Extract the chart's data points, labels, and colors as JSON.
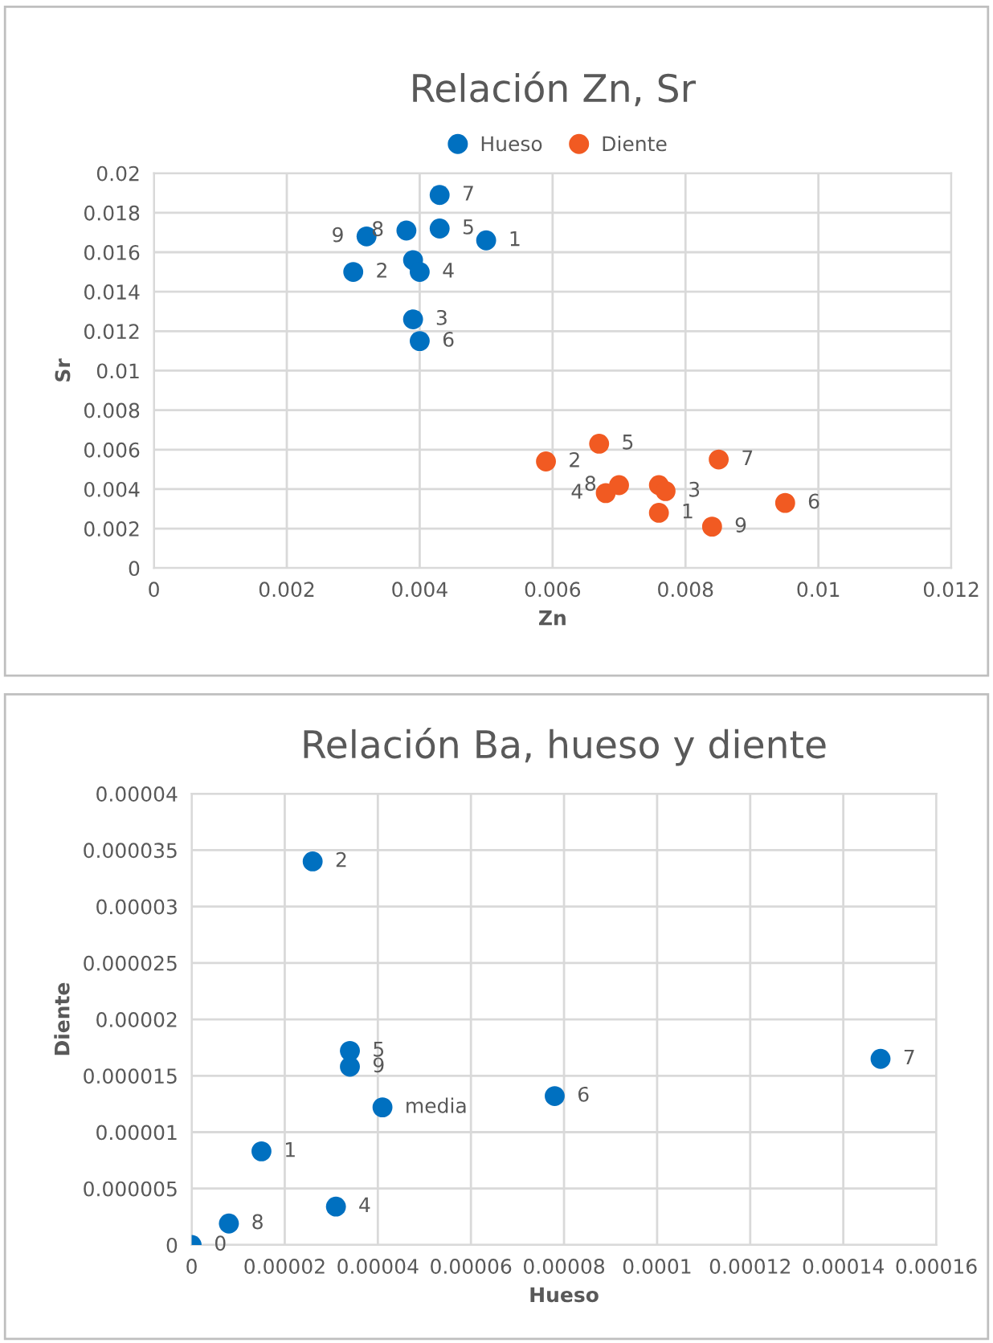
{
  "chart_data": [
    {
      "type": "scatter",
      "title": "Relación Zn, Sr",
      "xlabel": "Zn",
      "ylabel": "Sr",
      "legend": "top",
      "grid": true,
      "marker": "circle",
      "xlim": [
        0,
        0.012
      ],
      "xticks": [
        0,
        0.002,
        0.004,
        0.006,
        0.008,
        0.01,
        0.012
      ],
      "ylim": [
        0,
        0.02
      ],
      "yticks": [
        0,
        0.002,
        0.004,
        0.006,
        0.008,
        0.01,
        0.012,
        0.014,
        0.016,
        0.018,
        0.02
      ],
      "series": [
        {
          "name": "Hueso",
          "color": "#0070c0",
          "x": [
            0.0043,
            0.0038,
            0.0043,
            0.005,
            0.0032,
            0.003,
            0.0039,
            0.004,
            0.0039,
            0.004
          ],
          "values": [
            0.0189,
            0.0171,
            0.0172,
            0.0166,
            0.0168,
            0.015,
            0.0156,
            0.015,
            0.0126,
            0.0115
          ]
        },
        {
          "name": "Diente",
          "color": "#f15a22",
          "x": [
            0.0059,
            0.0067,
            0.0068,
            0.007,
            0.0076,
            0.0077,
            0.0076,
            0.0084,
            0.0085,
            0.0095
          ],
          "values": [
            0.0054,
            0.0063,
            0.0038,
            0.0042,
            0.0042,
            0.0039,
            0.0028,
            0.0021,
            0.0055,
            0.0033
          ]
        }
      ],
      "annotations": [
        {
          "text": "7",
          "x": 0.0043,
          "y": 0.0189
        },
        {
          "text": "8",
          "x": 0.0038,
          "y": 0.0171
        },
        {
          "text": "5",
          "x": 0.0043,
          "y": 0.0172
        },
        {
          "text": "1",
          "x": 0.005,
          "y": 0.0166
        },
        {
          "text": "9",
          "x": 0.0032,
          "y": 0.0168
        },
        {
          "text": "2",
          "x": 0.003,
          "y": 0.015
        },
        {
          "text": "4",
          "x": 0.004,
          "y": 0.015
        },
        {
          "text": "3",
          "x": 0.0039,
          "y": 0.0126
        },
        {
          "text": "6",
          "x": 0.004,
          "y": 0.0115
        },
        {
          "text": "2",
          "x": 0.0059,
          "y": 0.0054
        },
        {
          "text": "5",
          "x": 0.0067,
          "y": 0.0063
        },
        {
          "text": "4",
          "x": 0.0068,
          "y": 0.0038
        },
        {
          "text": "8",
          "x": 0.007,
          "y": 0.0042
        },
        {
          "text": "3",
          "x": 0.0077,
          "y": 0.0039
        },
        {
          "text": "1",
          "x": 0.0076,
          "y": 0.0028
        },
        {
          "text": "9",
          "x": 0.0084,
          "y": 0.0021
        },
        {
          "text": "7",
          "x": 0.0085,
          "y": 0.0055
        },
        {
          "text": "6",
          "x": 0.0095,
          "y": 0.0033
        }
      ]
    },
    {
      "type": "scatter",
      "title": "Relación Ba, hueso y diente",
      "xlabel": "Hueso",
      "ylabel": "Diente",
      "grid": true,
      "marker": "circle",
      "xlim": [
        0,
        0.00016
      ],
      "xticks": [
        0,
        {
          "value": 2e-05,
          "label": "0.00002"
        },
        {
          "value": 4e-05,
          "label": "0.00004"
        },
        {
          "value": 6e-05,
          "label": "0.00006"
        },
        {
          "value": 8e-05,
          "label": "0.00008"
        },
        0.0001,
        0.00012,
        0.00014,
        0.00016
      ],
      "ylim": [
        0,
        4e-05
      ],
      "yticks": [
        0,
        {
          "value": 5e-06,
          "label": "0.000005"
        },
        {
          "value": 1e-05,
          "label": "0.00001"
        },
        {
          "value": 1.5e-05,
          "label": "0.000015"
        },
        {
          "value": 2e-05,
          "label": "0.00002"
        },
        {
          "value": 2.5e-05,
          "label": "0.000025"
        },
        {
          "value": 3e-05,
          "label": "0.00003"
        },
        {
          "value": 3.5e-05,
          "label": "0.000035"
        },
        {
          "value": 4e-05,
          "label": "0.00004"
        }
      ],
      "series": [
        {
          "color": "#0070c0",
          "x": [
            0,
            8e-06,
            3.1e-05,
            1.5e-05,
            4.1e-05,
            3.4e-05,
            3.4e-05,
            2.6e-05,
            7.8e-05,
            0.000148
          ],
          "values": [
            0,
            1.9e-06,
            3.4e-06,
            8.3e-06,
            1.22e-05,
            1.58e-05,
            1.72e-05,
            3.4e-05,
            1.32e-05,
            1.65e-05
          ]
        }
      ],
      "annotations": [
        {
          "text": "0",
          "x": 0,
          "y": 0
        },
        {
          "text": "8",
          "x": 8e-06,
          "y": 1.9e-06
        },
        {
          "text": "4",
          "x": 3.1e-05,
          "y": 3.4e-06
        },
        {
          "text": "1",
          "x": 1.5e-05,
          "y": 8.3e-06
        },
        {
          "text": "media",
          "x": 4.1e-05,
          "y": 1.22e-05
        },
        {
          "text": "9",
          "x": 3.4e-05,
          "y": 1.58e-05
        },
        {
          "text": "5",
          "x": 3.4e-05,
          "y": 1.72e-05
        },
        {
          "text": "2",
          "x": 2.6e-05,
          "y": 3.4e-05
        },
        {
          "text": "6",
          "x": 7.8e-05,
          "y": 1.32e-05
        },
        {
          "text": "7",
          "x": 0.000148,
          "y": 1.65e-05
        }
      ]
    }
  ]
}
